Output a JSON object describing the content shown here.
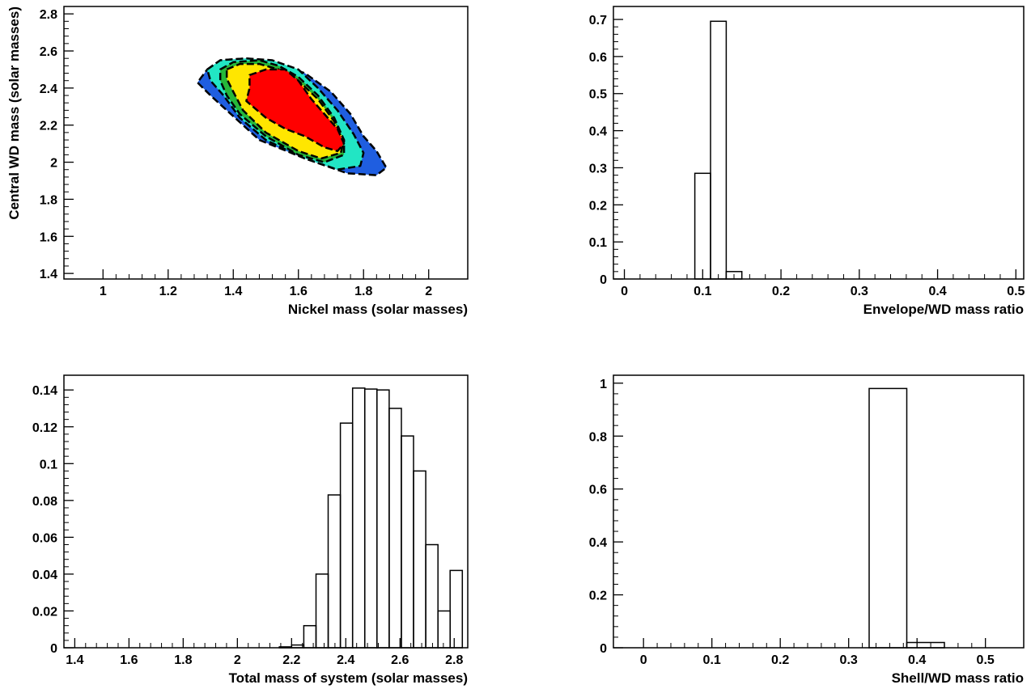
{
  "chart_data": [
    {
      "type": "contour",
      "xlabel": "Nickel mass (solar masses)",
      "ylabel": "Central WD mass (solar masses)",
      "xlim": [
        0.88,
        2.12
      ],
      "ylim": [
        1.37,
        2.84
      ],
      "xticks": [
        {
          "v": 1,
          "label": "1"
        },
        {
          "v": 1.2,
          "label": "1.2"
        },
        {
          "v": 1.4,
          "label": "1.4"
        },
        {
          "v": 1.6,
          "label": "1.6"
        },
        {
          "v": 1.8,
          "label": "1.8"
        },
        {
          "v": 2,
          "label": "2"
        }
      ],
      "yticks": [
        {
          "v": 1.4,
          "label": "1.4"
        },
        {
          "v": 1.6,
          "label": "1.6"
        },
        {
          "v": 1.8,
          "label": "1.8"
        },
        {
          "v": 2,
          "label": "2"
        },
        {
          "v": 2.2,
          "label": "2.2"
        },
        {
          "v": 2.4,
          "label": "2.4"
        },
        {
          "v": 2.6,
          "label": "2.6"
        },
        {
          "v": 2.8,
          "label": "2.8"
        }
      ],
      "levels": [
        {
          "color": "#1f5ee0",
          "points": [
            [
              1.32,
              2.5
            ],
            [
              1.36,
              2.55
            ],
            [
              1.44,
              2.56
            ],
            [
              1.52,
              2.54
            ],
            [
              1.62,
              2.48
            ],
            [
              1.7,
              2.38
            ],
            [
              1.76,
              2.26
            ],
            [
              1.8,
              2.14
            ],
            [
              1.84,
              2.06
            ],
            [
              1.87,
              1.97
            ],
            [
              1.84,
              1.93
            ],
            [
              1.75,
              1.94
            ],
            [
              1.62,
              2.02
            ],
            [
              1.48,
              2.12
            ],
            [
              1.38,
              2.28
            ],
            [
              1.33,
              2.36
            ],
            [
              1.29,
              2.43
            ]
          ]
        },
        {
          "color": "#22e5c4",
          "points": [
            [
              1.32,
              2.5
            ],
            [
              1.36,
              2.55
            ],
            [
              1.44,
              2.56
            ],
            [
              1.52,
              2.55
            ],
            [
              1.6,
              2.5
            ],
            [
              1.66,
              2.4
            ],
            [
              1.72,
              2.28
            ],
            [
              1.77,
              2.15
            ],
            [
              1.8,
              2.05
            ],
            [
              1.79,
              1.98
            ],
            [
              1.72,
              1.96
            ],
            [
              1.62,
              2.02
            ],
            [
              1.5,
              2.12
            ],
            [
              1.42,
              2.24
            ],
            [
              1.37,
              2.36
            ],
            [
              1.33,
              2.44
            ]
          ]
        },
        {
          "color": "#26b83a",
          "points": [
            [
              1.36,
              2.5
            ],
            [
              1.4,
              2.54
            ],
            [
              1.48,
              2.55
            ],
            [
              1.54,
              2.52
            ],
            [
              1.6,
              2.46
            ],
            [
              1.66,
              2.36
            ],
            [
              1.71,
              2.24
            ],
            [
              1.74,
              2.12
            ],
            [
              1.74,
              2.04
            ],
            [
              1.68,
              2.0
            ],
            [
              1.6,
              2.04
            ],
            [
              1.5,
              2.14
            ],
            [
              1.42,
              2.26
            ],
            [
              1.38,
              2.36
            ],
            [
              1.36,
              2.44
            ]
          ]
        },
        {
          "color": "#ffe600",
          "points": [
            [
              1.38,
              2.5
            ],
            [
              1.42,
              2.53
            ],
            [
              1.48,
              2.53
            ],
            [
              1.54,
              2.5
            ],
            [
              1.6,
              2.44
            ],
            [
              1.66,
              2.34
            ],
            [
              1.71,
              2.22
            ],
            [
              1.74,
              2.12
            ],
            [
              1.73,
              2.05
            ],
            [
              1.67,
              2.02
            ],
            [
              1.6,
              2.06
            ],
            [
              1.5,
              2.16
            ],
            [
              1.43,
              2.28
            ],
            [
              1.4,
              2.38
            ],
            [
              1.38,
              2.45
            ]
          ]
        },
        {
          "color": "#ff0000",
          "points": [
            [
              1.45,
              2.47
            ],
            [
              1.5,
              2.5
            ],
            [
              1.56,
              2.5
            ],
            [
              1.6,
              2.44
            ],
            [
              1.64,
              2.34
            ],
            [
              1.68,
              2.26
            ],
            [
              1.72,
              2.18
            ],
            [
              1.74,
              2.1
            ],
            [
              1.72,
              2.06
            ],
            [
              1.68,
              2.08
            ],
            [
              1.62,
              2.14
            ],
            [
              1.56,
              2.18
            ],
            [
              1.5,
              2.24
            ],
            [
              1.44,
              2.33
            ],
            [
              1.45,
              2.4
            ]
          ]
        }
      ]
    },
    {
      "type": "histogram",
      "xlabel": "Envelope/WD mass ratio",
      "ylabel": "",
      "xlim": [
        -0.014,
        0.51
      ],
      "ylim": [
        0,
        0.735
      ],
      "xticks": [
        {
          "v": 0,
          "label": "0"
        },
        {
          "v": 0.1,
          "label": "0.1"
        },
        {
          "v": 0.2,
          "label": "0.2"
        },
        {
          "v": 0.3,
          "label": "0.3"
        },
        {
          "v": 0.4,
          "label": "0.4"
        },
        {
          "v": 0.5,
          "label": "0.5"
        }
      ],
      "yticks": [
        {
          "v": 0,
          "label": "0"
        },
        {
          "v": 0.1,
          "label": "0.1"
        },
        {
          "v": 0.2,
          "label": "0.2"
        },
        {
          "v": 0.3,
          "label": "0.3"
        },
        {
          "v": 0.4,
          "label": "0.4"
        },
        {
          "v": 0.5,
          "label": "0.5"
        },
        {
          "v": 0.6,
          "label": "0.6"
        },
        {
          "v": 0.7,
          "label": "0.7"
        }
      ],
      "bins": [
        {
          "x0": 0.09,
          "x1": 0.11,
          "y": 0.285
        },
        {
          "x0": 0.11,
          "x1": 0.13,
          "y": 0.695
        },
        {
          "x0": 0.13,
          "x1": 0.15,
          "y": 0.02
        }
      ]
    },
    {
      "type": "histogram",
      "xlabel": "Total mass of system (solar masses)",
      "ylabel": "",
      "xlim": [
        1.36,
        2.85
      ],
      "ylim": [
        0,
        0.148
      ],
      "xticks": [
        {
          "v": 1.4,
          "label": "1.4"
        },
        {
          "v": 1.6,
          "label": "1.6"
        },
        {
          "v": 1.8,
          "label": "1.8"
        },
        {
          "v": 2,
          "label": "2"
        },
        {
          "v": 2.2,
          "label": "2.2"
        },
        {
          "v": 2.4,
          "label": "2.4"
        },
        {
          "v": 2.6,
          "label": "2.6"
        },
        {
          "v": 2.8,
          "label": "2.8"
        }
      ],
      "yticks": [
        {
          "v": 0,
          "label": "0"
        },
        {
          "v": 0.02,
          "label": "0.02"
        },
        {
          "v": 0.04,
          "label": "0.04"
        },
        {
          "v": 0.06,
          "label": "0.06"
        },
        {
          "v": 0.08,
          "label": "0.08"
        },
        {
          "v": 0.1,
          "label": "0.1"
        },
        {
          "v": 0.12,
          "label": "0.12"
        },
        {
          "v": 0.14,
          "label": "0.14"
        }
      ],
      "bins": [
        {
          "x0": 2.155,
          "x1": 2.2,
          "y": 0.0005
        },
        {
          "x0": 2.2,
          "x1": 2.245,
          "y": 0.0015
        },
        {
          "x0": 2.245,
          "x1": 2.29,
          "y": 0.012
        },
        {
          "x0": 2.29,
          "x1": 2.335,
          "y": 0.04
        },
        {
          "x0": 2.335,
          "x1": 2.38,
          "y": 0.083
        },
        {
          "x0": 2.38,
          "x1": 2.425,
          "y": 0.122
        },
        {
          "x0": 2.425,
          "x1": 2.47,
          "y": 0.141
        },
        {
          "x0": 2.47,
          "x1": 2.515,
          "y": 0.1405
        },
        {
          "x0": 2.515,
          "x1": 2.56,
          "y": 0.14
        },
        {
          "x0": 2.56,
          "x1": 2.605,
          "y": 0.13
        },
        {
          "x0": 2.605,
          "x1": 2.65,
          "y": 0.115
        },
        {
          "x0": 2.65,
          "x1": 2.695,
          "y": 0.096
        },
        {
          "x0": 2.695,
          "x1": 2.74,
          "y": 0.056
        },
        {
          "x0": 2.74,
          "x1": 2.785,
          "y": 0.02
        },
        {
          "x0": 2.785,
          "x1": 2.83,
          "y": 0.042
        }
      ]
    },
    {
      "type": "histogram",
      "xlabel": "Shell/WD mass ratio",
      "ylabel": "",
      "xlim": [
        -0.044,
        0.556
      ],
      "ylim": [
        0,
        1.03
      ],
      "xticks": [
        {
          "v": 0,
          "label": "0"
        },
        {
          "v": 0.1,
          "label": "0.1"
        },
        {
          "v": 0.2,
          "label": "0.2"
        },
        {
          "v": 0.3,
          "label": "0.3"
        },
        {
          "v": 0.4,
          "label": "0.4"
        },
        {
          "v": 0.5,
          "label": "0.5"
        }
      ],
      "yticks": [
        {
          "v": 0,
          "label": "0"
        },
        {
          "v": 0.2,
          "label": "0.2"
        },
        {
          "v": 0.4,
          "label": "0.4"
        },
        {
          "v": 0.6,
          "label": "0.6"
        },
        {
          "v": 0.8,
          "label": "0.8"
        },
        {
          "v": 1,
          "label": "1"
        }
      ],
      "bins": [
        {
          "x0": 0.33,
          "x1": 0.385,
          "y": 0.98
        },
        {
          "x0": 0.385,
          "x1": 0.44,
          "y": 0.02
        }
      ]
    }
  ]
}
